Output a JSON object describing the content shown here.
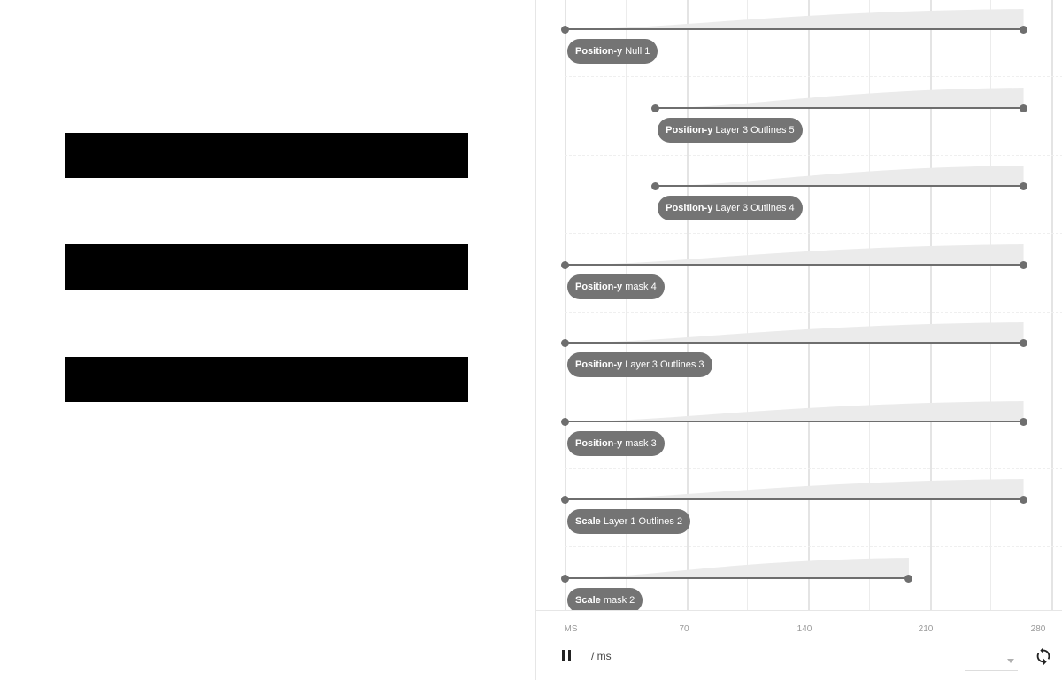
{
  "timeline": {
    "tracks": [
      {
        "property": "Position-y",
        "layer": "Null 1",
        "start_ms": 0,
        "end_ms": 264
      },
      {
        "property": "Position-y",
        "layer": "Layer 3 Outlines 5",
        "start_ms": 52,
        "end_ms": 264
      },
      {
        "property": "Position-y",
        "layer": "Layer 3 Outlines 4",
        "start_ms": 52,
        "end_ms": 264
      },
      {
        "property": "Position-y",
        "layer": "mask 4",
        "start_ms": 0,
        "end_ms": 264
      },
      {
        "property": "Position-y",
        "layer": "Layer 3 Outlines 3",
        "start_ms": 0,
        "end_ms": 264
      },
      {
        "property": "Position-y",
        "layer": "mask 3",
        "start_ms": 0,
        "end_ms": 264
      },
      {
        "property": "Scale",
        "layer": "Layer 1 Outlines 2",
        "start_ms": 0,
        "end_ms": 264
      },
      {
        "property": "Scale",
        "layer": "mask 2",
        "start_ms": 0,
        "end_ms": 198
      }
    ],
    "axis": {
      "unit_label": "MS",
      "ticks": [
        "70",
        "140",
        "210",
        "280"
      ]
    }
  },
  "controls": {
    "unit_text": "/ ms",
    "speed_value": "",
    "icons": {
      "pause": "pause-icon",
      "replay": "replay-icon",
      "dropdown": "chevron-down-icon"
    }
  },
  "colors": {
    "menu_bar": "#000000",
    "track": "#6e6e6e",
    "label_bg": "#747474",
    "curve_fill": "#ebebeb"
  }
}
